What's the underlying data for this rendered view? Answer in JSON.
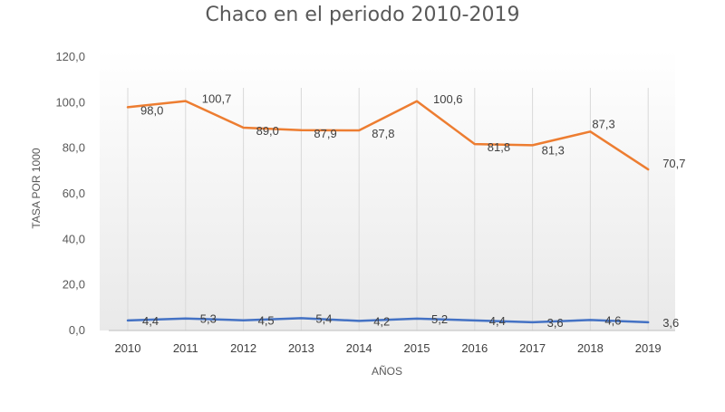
{
  "chart_data": {
    "type": "line",
    "title": "Chaco en el periodo 2010-2019",
    "xlabel": "AÑOS",
    "ylabel": "TASA POR 1000",
    "categories": [
      "2010",
      "2011",
      "2012",
      "2013",
      "2014",
      "2015",
      "2016",
      "2017",
      "2018",
      "2019"
    ],
    "ylim": [
      0,
      120
    ],
    "yticks": [
      "0,0",
      "20,0",
      "40,0",
      "60,0",
      "80,0",
      "100,0",
      "120,0"
    ],
    "grid": "vertical",
    "legend": "none",
    "series": [
      {
        "color": "#ed7d31",
        "values": [
          98.0,
          100.7,
          89.0,
          87.9,
          87.8,
          100.6,
          81.8,
          81.3,
          87.3,
          70.7
        ],
        "labels": [
          "98,0",
          "100,7",
          "89,0",
          "87,9",
          "87,8",
          "100,6",
          "81,8",
          "81,3",
          "87,3",
          "70,7"
        ]
      },
      {
        "color": "#4472c4",
        "values": [
          4.4,
          5.3,
          4.5,
          5.4,
          4.2,
          5.2,
          4.4,
          3.6,
          4.6,
          3.6
        ],
        "labels": [
          "4,4",
          "5,3",
          "4,5",
          "5,4",
          "4,2",
          "5,2",
          "4,4",
          "3,6",
          "4,6",
          "3,6"
        ]
      }
    ]
  }
}
